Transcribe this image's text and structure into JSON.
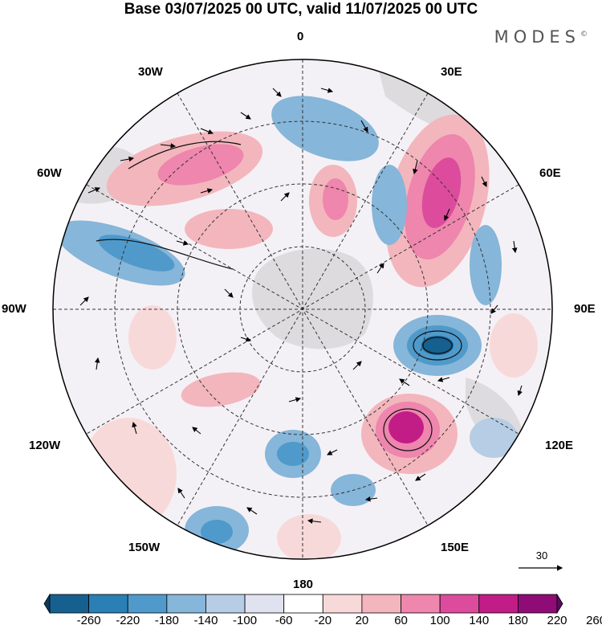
{
  "title": "Base 03/07/2025 00 UTC, valid 11/07/2025 00 UTC",
  "brand": "MODES",
  "brand_mark": "©",
  "map": {
    "projection": "south-polar-stereographic",
    "graticule_labels": {
      "top": "0",
      "top_left": "30W",
      "top_right": "30E",
      "upper_left": "60W",
      "upper_right": "60E",
      "left": "90W",
      "right": "90E",
      "lower_left": "120W",
      "lower_right": "120E",
      "bottom_left": "150W",
      "bottom_right": "150E",
      "bottom": "180"
    },
    "land_color": "#c8c8c8",
    "reference_vector_label": "30"
  },
  "colorbar": {
    "ticks": [
      "-260",
      "-220",
      "-180",
      "-140",
      "-100",
      "-60",
      "-20",
      "20",
      "60",
      "100",
      "140",
      "180",
      "220",
      "260"
    ],
    "colors": [
      "#0d3b5e",
      "#16608f",
      "#2a7fb5",
      "#4f9acb",
      "#86b6d9",
      "#b6cde5",
      "#e0e3ef",
      "#ffffff",
      "#f8d9d9",
      "#f3b6bd",
      "#ee86ad",
      "#dd4c9c",
      "#c21d87",
      "#8f0c77",
      "#5a0a62"
    ]
  }
}
